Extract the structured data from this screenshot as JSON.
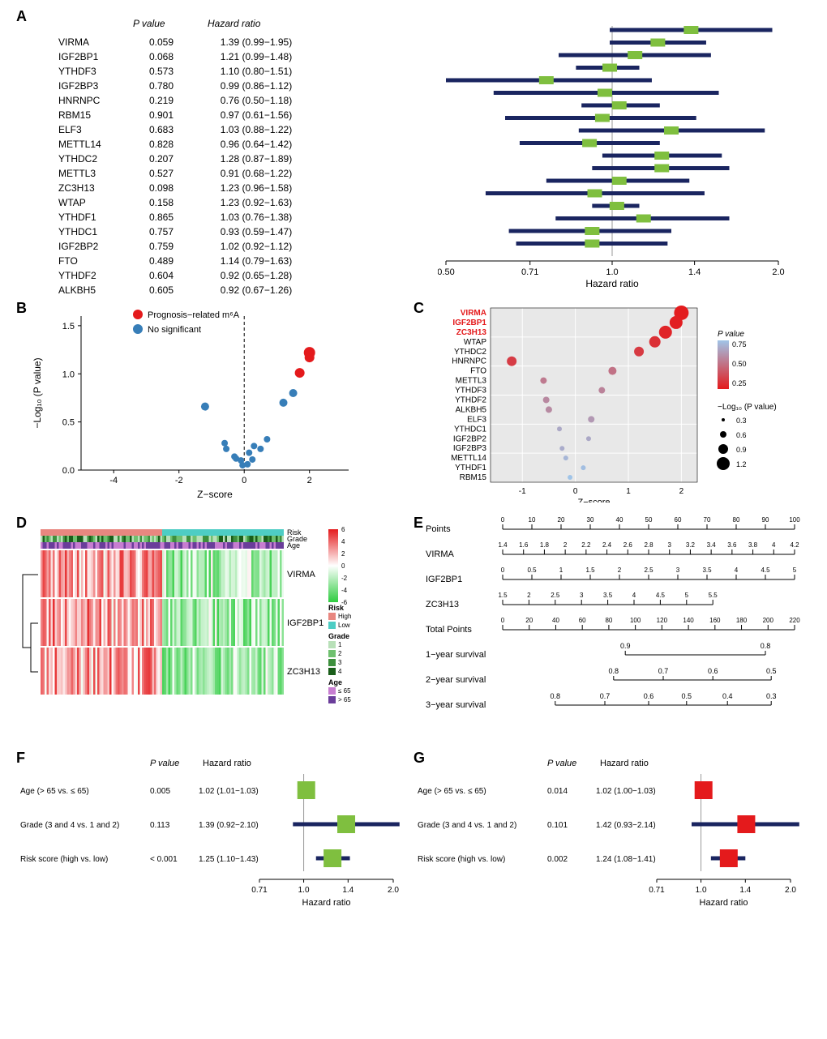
{
  "panelA": {
    "columns": [
      "",
      "P value",
      "Hazard ratio"
    ],
    "rows": [
      {
        "gene": "VIRMA",
        "pval": "0.059",
        "hr_text": "1.39 (0.99−1.95)",
        "hr": 1.39,
        "lo": 0.99,
        "hi": 1.95
      },
      {
        "gene": "IGF2BP1",
        "pval": "0.068",
        "hr_text": "1.21 (0.99−1.48)",
        "hr": 1.21,
        "lo": 0.99,
        "hi": 1.48
      },
      {
        "gene": "YTHDF3",
        "pval": "0.573",
        "hr_text": "1.10 (0.80−1.51)",
        "hr": 1.1,
        "lo": 0.8,
        "hi": 1.51
      },
      {
        "gene": "IGF2BP3",
        "pval": "0.780",
        "hr_text": "0.99 (0.86−1.12)",
        "hr": 0.99,
        "lo": 0.86,
        "hi": 1.12
      },
      {
        "gene": "HNRNPC",
        "pval": "0.219",
        "hr_text": "0.76 (0.50−1.18)",
        "hr": 0.76,
        "lo": 0.5,
        "hi": 1.18
      },
      {
        "gene": "RBM15",
        "pval": "0.901",
        "hr_text": "0.97 (0.61−1.56)",
        "hr": 0.97,
        "lo": 0.61,
        "hi": 1.56
      },
      {
        "gene": "ELF3",
        "pval": "0.683",
        "hr_text": "1.03 (0.88−1.22)",
        "hr": 1.03,
        "lo": 0.88,
        "hi": 1.22
      },
      {
        "gene": "METTL14",
        "pval": "0.828",
        "hr_text": "0.96 (0.64−1.42)",
        "hr": 0.96,
        "lo": 0.64,
        "hi": 1.42
      },
      {
        "gene": "YTHDC2",
        "pval": "0.207",
        "hr_text": "1.28 (0.87−1.89)",
        "hr": 1.28,
        "lo": 0.87,
        "hi": 1.89
      },
      {
        "gene": "METTL3",
        "pval": "0.527",
        "hr_text": "0.91 (0.68−1.22)",
        "hr": 0.91,
        "lo": 0.68,
        "hi": 1.22
      },
      {
        "gene": "ZC3H13",
        "pval": "0.098",
        "hr_text": "1.23 (0.96−1.58)",
        "hr": 1.23,
        "lo": 0.96,
        "hi": 1.58
      },
      {
        "gene": "WTAP",
        "pval": "0.158",
        "hr_text": "1.23 (0.92−1.63)",
        "hr": 1.23,
        "lo": 0.92,
        "hi": 1.63
      },
      {
        "gene": "YTHDF1",
        "pval": "0.865",
        "hr_text": "1.03 (0.76−1.38)",
        "hr": 1.03,
        "lo": 0.76,
        "hi": 1.38
      },
      {
        "gene": "YTHDC1",
        "pval": "0.757",
        "hr_text": "0.93 (0.59−1.47)",
        "hr": 0.93,
        "lo": 0.59,
        "hi": 1.47
      },
      {
        "gene": "IGF2BP2",
        "pval": "0.759",
        "hr_text": "1.02 (0.92−1.12)",
        "hr": 1.02,
        "lo": 0.92,
        "hi": 1.12
      },
      {
        "gene": "FTO",
        "pval": "0.489",
        "hr_text": "1.14 (0.79−1.63)",
        "hr": 1.14,
        "lo": 0.79,
        "hi": 1.63
      },
      {
        "gene": "YTHDF2",
        "pval": "0.604",
        "hr_text": "0.92 (0.65−1.28)",
        "hr": 0.92,
        "lo": 0.65,
        "hi": 1.28
      },
      {
        "gene": "ALKBH5",
        "pval": "0.605",
        "hr_text": "0.92 (0.67−1.26)",
        "hr": 0.92,
        "lo": 0.67,
        "hi": 1.26
      }
    ],
    "xticks": [
      0.5,
      0.71,
      1.0,
      1.41,
      2.0
    ],
    "xlabel": "Hazard ratio",
    "bar_color": "#1a2560",
    "box_color": "#7fbf3f"
  },
  "panelB": {
    "xlabel": "Z−score",
    "ylabel": "−Log₁₀ (P value)",
    "xticks": [
      -4,
      -2,
      0,
      2
    ],
    "yticks": [
      0.0,
      0.5,
      1.0,
      1.5
    ],
    "legend": [
      "Prognosis−related m⁶A",
      "No significant"
    ],
    "legend_colors": [
      "#e41a1c",
      "#377eb8"
    ],
    "points": [
      {
        "x": 2.0,
        "y": 1.22,
        "sig": true,
        "r": 7
      },
      {
        "x": 2.0,
        "y": 1.17,
        "sig": true,
        "r": 6
      },
      {
        "x": 1.7,
        "y": 1.01,
        "sig": true,
        "r": 6
      },
      {
        "x": 1.5,
        "y": 0.8,
        "sig": false,
        "r": 5
      },
      {
        "x": 1.2,
        "y": 0.7,
        "sig": false,
        "r": 5
      },
      {
        "x": -1.2,
        "y": 0.66,
        "sig": false,
        "r": 5
      },
      {
        "x": 0.7,
        "y": 0.32,
        "sig": false,
        "r": 4
      },
      {
        "x": -0.6,
        "y": 0.28,
        "sig": false,
        "r": 4
      },
      {
        "x": 0.3,
        "y": 0.25,
        "sig": false,
        "r": 4
      },
      {
        "x": -0.55,
        "y": 0.22,
        "sig": false,
        "r": 4
      },
      {
        "x": 0.5,
        "y": 0.22,
        "sig": false,
        "r": 4
      },
      {
        "x": 0.15,
        "y": 0.18,
        "sig": false,
        "r": 4
      },
      {
        "x": -0.3,
        "y": 0.14,
        "sig": false,
        "r": 4
      },
      {
        "x": -0.25,
        "y": 0.12,
        "sig": false,
        "r": 4
      },
      {
        "x": 0.25,
        "y": 0.11,
        "sig": false,
        "r": 4
      },
      {
        "x": -0.1,
        "y": 0.1,
        "sig": false,
        "r": 4
      },
      {
        "x": 0.1,
        "y": 0.06,
        "sig": false,
        "r": 4
      },
      {
        "x": -0.05,
        "y": 0.05,
        "sig": false,
        "r": 4
      }
    ]
  },
  "panelC": {
    "xlabel": "Z−score",
    "xticks": [
      -1,
      0,
      1,
      2
    ],
    "genes": [
      "VIRMA",
      "IGF2BP1",
      "ZC3H13",
      "WTAP",
      "YTHDC2",
      "HNRNPC",
      "FTO",
      "METTL3",
      "YTHDF3",
      "YTHDF2",
      "ALKBH5",
      "ELF3",
      "YTHDC1",
      "IGF2BP2",
      "IGF2BP3",
      "METTL14",
      "YTHDF1",
      "RBM15"
    ],
    "highlight_genes": [
      "VIRMA",
      "IGF2BP1",
      "ZC3H13"
    ],
    "highlight_color": "#e41a1c",
    "points": [
      {
        "x": 2.0,
        "pval": 0.06,
        "size": 9
      },
      {
        "x": 1.9,
        "pval": 0.07,
        "size": 8
      },
      {
        "x": 1.7,
        "pval": 0.1,
        "size": 8
      },
      {
        "x": 1.5,
        "pval": 0.16,
        "size": 7
      },
      {
        "x": 1.2,
        "pval": 0.21,
        "size": 6
      },
      {
        "x": -1.2,
        "pval": 0.22,
        "size": 6
      },
      {
        "x": 0.7,
        "pval": 0.49,
        "size": 5
      },
      {
        "x": -0.6,
        "pval": 0.53,
        "size": 4
      },
      {
        "x": 0.5,
        "pval": 0.57,
        "size": 4
      },
      {
        "x": -0.55,
        "pval": 0.6,
        "size": 4
      },
      {
        "x": -0.5,
        "pval": 0.61,
        "size": 4
      },
      {
        "x": 0.3,
        "pval": 0.68,
        "size": 4
      },
      {
        "x": -0.3,
        "pval": 0.76,
        "size": 3
      },
      {
        "x": 0.25,
        "pval": 0.76,
        "size": 3
      },
      {
        "x": -0.25,
        "pval": 0.78,
        "size": 3
      },
      {
        "x": -0.18,
        "pval": 0.83,
        "size": 3
      },
      {
        "x": 0.15,
        "pval": 0.87,
        "size": 3
      },
      {
        "x": -0.1,
        "pval": 0.9,
        "size": 3
      }
    ],
    "pval_legend_label": "P value",
    "pval_legend_ticks": [
      0.25,
      0.5,
      0.75
    ],
    "pval_color_high": "#a0c4e8",
    "pval_color_low": "#e41a1c",
    "size_legend_label": "−Log₁₀ (P value)",
    "size_legend_vals": [
      0.3,
      0.6,
      0.9,
      1.2
    ]
  },
  "panelD": {
    "row_labels": [
      "VIRMA",
      "IGF2BP1",
      "ZC3H13"
    ],
    "annotation_tracks": [
      "Risk",
      "Grade",
      "Age"
    ],
    "scale_ticks": [
      -6,
      -4,
      -2,
      0,
      2,
      4,
      6
    ],
    "scale_color_low": "#2ecc40",
    "scale_color_high": "#e41a1c",
    "legends": {
      "Risk": {
        "High": "#e88780",
        "Low": "#4ecdc4"
      },
      "Grade": {
        "4": "#1a5e1a",
        "3": "#3d8f3d",
        "2": "#6fc06f",
        "1": "#b8e0b8"
      },
      "Age": {
        "≤ 65": "#c77dd1",
        "> 65": "#6a3d9a"
      }
    }
  },
  "panelE": {
    "scales": [
      {
        "label": "Points",
        "min": 0,
        "max": 100,
        "step": 10
      },
      {
        "label": "VIRMA",
        "min": 1.4,
        "max": 4.2,
        "step": 0.2
      },
      {
        "label": "IGF2BP1",
        "min": 0.0,
        "max": 5.0,
        "step": 0.5
      },
      {
        "label": "ZC3H13",
        "min": 1.5,
        "max": 5.5,
        "step": 0.5
      },
      {
        "label": "Total Points",
        "min": 0,
        "max": 220,
        "step": 20
      },
      {
        "label": "1−year survival",
        "vals": [
          0.9,
          0.8
        ],
        "pos": [
          0.42,
          0.9
        ]
      },
      {
        "label": "2−year survival",
        "vals": [
          0.8,
          0.7,
          0.6,
          0.5
        ],
        "pos": [
          0.38,
          0.55,
          0.72,
          0.92
        ]
      },
      {
        "label": "3−year survival",
        "vals": [
          0.8,
          0.7,
          0.6,
          0.5,
          0.4,
          0.3
        ],
        "pos": [
          0.18,
          0.35,
          0.5,
          0.63,
          0.77,
          0.92
        ]
      }
    ]
  },
  "panelF": {
    "columns": [
      "",
      "P value",
      "Hazard ratio"
    ],
    "rows": [
      {
        "var": "Age (> 65 vs. ≤ 65)",
        "pval": "0.005",
        "hr_text": "1.02 (1.01−1.03)",
        "hr": 1.02,
        "lo": 1.01,
        "hi": 1.03
      },
      {
        "var": "Grade (3 and 4 vs. 1 and 2)",
        "pval": "0.113",
        "hr_text": "1.39 (0.92−2.10)",
        "hr": 1.39,
        "lo": 0.92,
        "hi": 2.1
      },
      {
        "var": "Risk score (high vs. low)",
        "pval": "< 0.001",
        "hr_text": "1.25 (1.10−1.43)",
        "hr": 1.25,
        "lo": 1.1,
        "hi": 1.43
      }
    ],
    "xticks": [
      0.71,
      1.0,
      1.41,
      2.0
    ],
    "xlabel": "Hazard ratio",
    "bar_color": "#1a2560",
    "box_color": "#7fbf3f"
  },
  "panelG": {
    "columns": [
      "",
      "P value",
      "Hazard ratio"
    ],
    "rows": [
      {
        "var": "Age (> 65 vs. ≤ 65)",
        "pval": "0.014",
        "hr_text": "1.02 (1.00−1.03)",
        "hr": 1.02,
        "lo": 1.0,
        "hi": 1.03
      },
      {
        "var": "Grade (3 and 4 vs. 1 and 2)",
        "pval": "0.101",
        "hr_text": "1.42 (0.93−2.14)",
        "hr": 1.42,
        "lo": 0.93,
        "hi": 2.14
      },
      {
        "var": "Risk score (high vs. low)",
        "pval": "0.002",
        "hr_text": "1.24 (1.08−1.41)",
        "hr": 1.24,
        "lo": 1.08,
        "hi": 1.41
      }
    ],
    "xticks": [
      0.71,
      1.0,
      1.41,
      2.0
    ],
    "xlabel": "Hazard ratio",
    "bar_color": "#1a2560",
    "box_color": "#e41a1c"
  }
}
